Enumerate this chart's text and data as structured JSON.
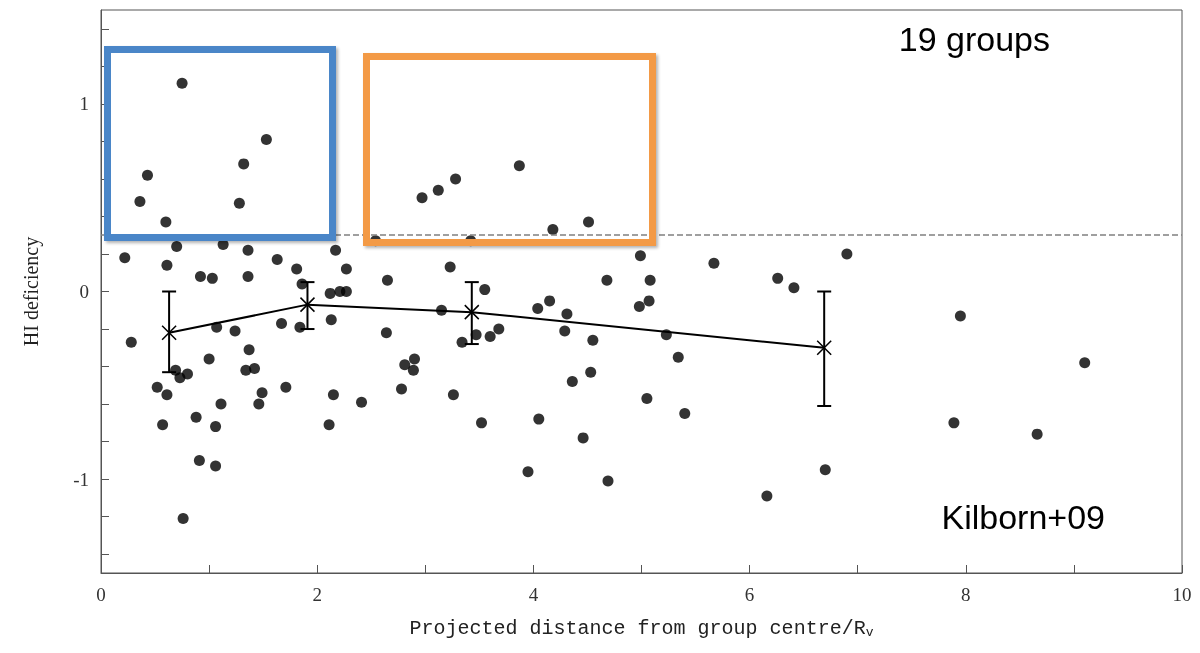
{
  "chart_data": {
    "type": "scatter",
    "xlabel": "Projected distance from group centre/R$_{v}$",
    "ylabel": "HI deficiency",
    "annotations": [
      "19 groups",
      "Kilborn+09"
    ],
    "xlim": [
      0,
      10
    ],
    "ylim": [
      -1.5,
      1.5
    ],
    "xticks": [
      0,
      {
        "value": 1,
        "label": null
      },
      2,
      {
        "value": 3,
        "label": null
      },
      4,
      {
        "value": 5,
        "label": null
      },
      6,
      {
        "value": 7,
        "label": null
      },
      8,
      {
        "value": 9,
        "label": null
      },
      10
    ],
    "yticks": [
      {
        "value": -1.4,
        "label": null
      },
      {
        "value": -1.2,
        "label": null
      },
      -1,
      {
        "value": -0.8,
        "label": null
      },
      {
        "value": -0.6,
        "label": null
      },
      {
        "value": -0.4,
        "label": null
      },
      {
        "value": -0.2,
        "label": null
      },
      0,
      {
        "value": 0.2,
        "label": null
      },
      {
        "value": 0.4,
        "label": null
      },
      {
        "value": 0.6,
        "label": null
      },
      {
        "value": 0.8,
        "label": null
      },
      1,
      {
        "value": 1.2,
        "label": null
      },
      {
        "value": 1.4,
        "label": null
      }
    ],
    "grid": false,
    "ref_lines": [
      {
        "axis": "y",
        "value": 0.3,
        "color": "#808080",
        "line_style": "dashed"
      }
    ],
    "series": [
      {
        "marker": "circle",
        "color": "#000000",
        "x": [
          0.75,
          0.43,
          0.36,
          0.6,
          1.32,
          1.53,
          1.28,
          2.97,
          3.12,
          3.28,
          0.7,
          0.22,
          1.13,
          1.36,
          2.17,
          1.63,
          0.61,
          1.81,
          2.27,
          0.92,
          1.03,
          1.36,
          1.86,
          2.65,
          2.54,
          3.23,
          2.12,
          2.21,
          2.27,
          3.87,
          4.18,
          4.51,
          3.42,
          4.99,
          5.67,
          4.68,
          5.08,
          6.26,
          6.41,
          3.55,
          4.15,
          4.04,
          5.07,
          4.98,
          6.9,
          0.28,
          0.52,
          0.61,
          0.69,
          0.73,
          0.8,
          0.57,
          0.88,
          1.06,
          1.11,
          1.0,
          1.07,
          1.24,
          1.37,
          1.34,
          1.42,
          1.49,
          1.46,
          0.91,
          1.06,
          0.76,
          1.67,
          1.71,
          1.84,
          2.13,
          2.15,
          2.11,
          2.41,
          2.64,
          2.78,
          2.81,
          2.9,
          2.89,
          3.15,
          3.26,
          3.34,
          3.47,
          3.6,
          3.68,
          3.52,
          4.29,
          4.31,
          4.55,
          4.53,
          4.36,
          4.05,
          4.46,
          3.95,
          4.69,
          5.23,
          5.34,
          5.05,
          5.4,
          6.16,
          6.7,
          7.95,
          7.89,
          8.66,
          9.1
        ],
        "values": [
          1.11,
          0.62,
          0.48,
          0.37,
          0.68,
          0.81,
          0.47,
          0.5,
          0.54,
          0.6,
          0.24,
          0.18,
          0.25,
          0.22,
          0.22,
          0.17,
          0.14,
          0.12,
          0.12,
          0.08,
          0.07,
          0.08,
          0.04,
          0.06,
          0.27,
          0.13,
          -0.01,
          0.0,
          0.0,
          0.67,
          0.33,
          0.37,
          0.27,
          0.19,
          0.15,
          0.06,
          0.06,
          0.07,
          0.02,
          0.01,
          -0.05,
          -0.09,
          -0.05,
          -0.08,
          0.2,
          -0.27,
          -0.51,
          -0.55,
          -0.42,
          -0.46,
          -0.44,
          -0.71,
          -0.67,
          -0.72,
          -0.6,
          -0.36,
          -0.19,
          -0.21,
          -0.31,
          -0.42,
          -0.41,
          -0.54,
          -0.6,
          -0.9,
          -0.93,
          -1.21,
          -0.17,
          -0.51,
          -0.19,
          -0.15,
          -0.55,
          -0.71,
          -0.59,
          -0.22,
          -0.52,
          -0.39,
          -0.36,
          -0.42,
          -0.1,
          -0.55,
          -0.27,
          -0.23,
          -0.24,
          -0.2,
          -0.7,
          -0.21,
          -0.12,
          -0.26,
          -0.43,
          -0.48,
          -0.68,
          -0.78,
          -0.96,
          -1.01,
          -0.23,
          -0.35,
          -0.57,
          -0.65,
          -1.09,
          -0.95,
          -0.13,
          -0.7,
          -0.76,
          -0.38
        ]
      },
      {
        "type": "line",
        "marker": "cross",
        "line_style": "solid",
        "color": "#000000",
        "x": [
          0.63,
          1.91,
          3.43,
          6.69
        ],
        "values": [
          -0.22,
          -0.07,
          -0.11,
          -0.3
        ],
        "errors": [
          [
            -0.43,
            0.0
          ],
          [
            -0.2,
            0.05
          ],
          [
            -0.28,
            0.05
          ],
          [
            -0.61,
            0.0
          ]
        ]
      }
    ]
  }
}
